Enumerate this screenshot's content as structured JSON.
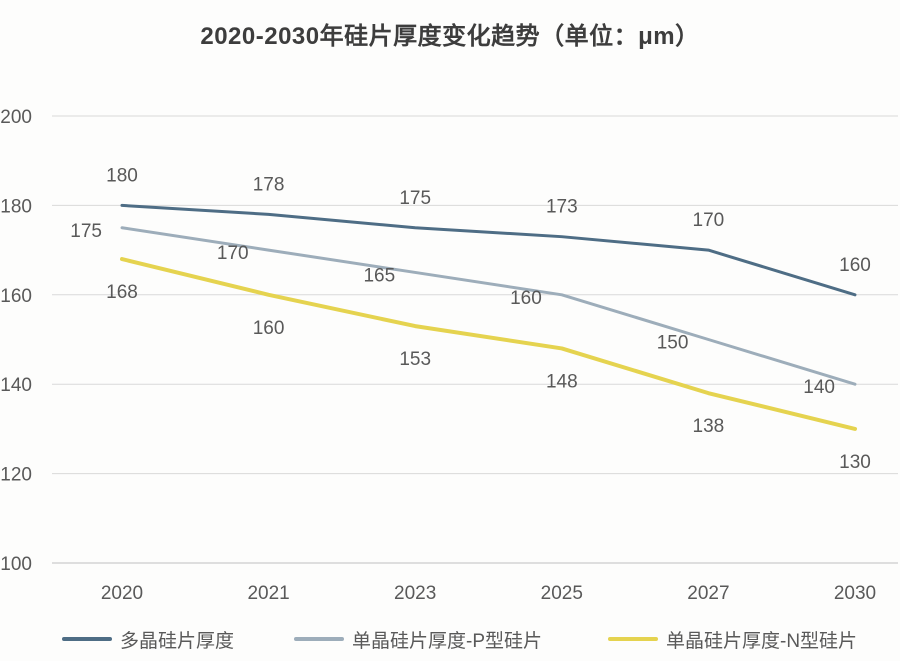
{
  "chart_data": {
    "type": "line",
    "title": "2020-2030年硅片厚度变化趋势（单位：μm）",
    "categories": [
      "2020",
      "2021",
      "2023",
      "2025",
      "2027",
      "2030"
    ],
    "series": [
      {
        "name": "多晶硅片厚度",
        "values": [
          180,
          178,
          175,
          173,
          170,
          160
        ],
        "color": "#4e6d85",
        "label_placement": "above"
      },
      {
        "name": "单晶硅片厚度-P型硅片",
        "values": [
          175,
          170,
          165,
          160,
          150,
          140
        ],
        "color": "#9dadba",
        "label_placement": "left"
      },
      {
        "name": "单晶硅片厚度-N型硅片",
        "values": [
          168,
          160,
          153,
          148,
          138,
          130
        ],
        "color": "#e5d34f",
        "label_placement": "below"
      }
    ],
    "ylim": [
      100,
      200
    ],
    "yticks": [
      100,
      120,
      140,
      160,
      180,
      200
    ],
    "grid": true,
    "legend_position": "bottom",
    "data_labels_shown": true
  },
  "colors": {
    "gridline": "#d9d9d9",
    "axis_line": "#c0c0c0",
    "tick_label": "#595959",
    "data_label": "#595959",
    "title": "#3d3d3d"
  }
}
